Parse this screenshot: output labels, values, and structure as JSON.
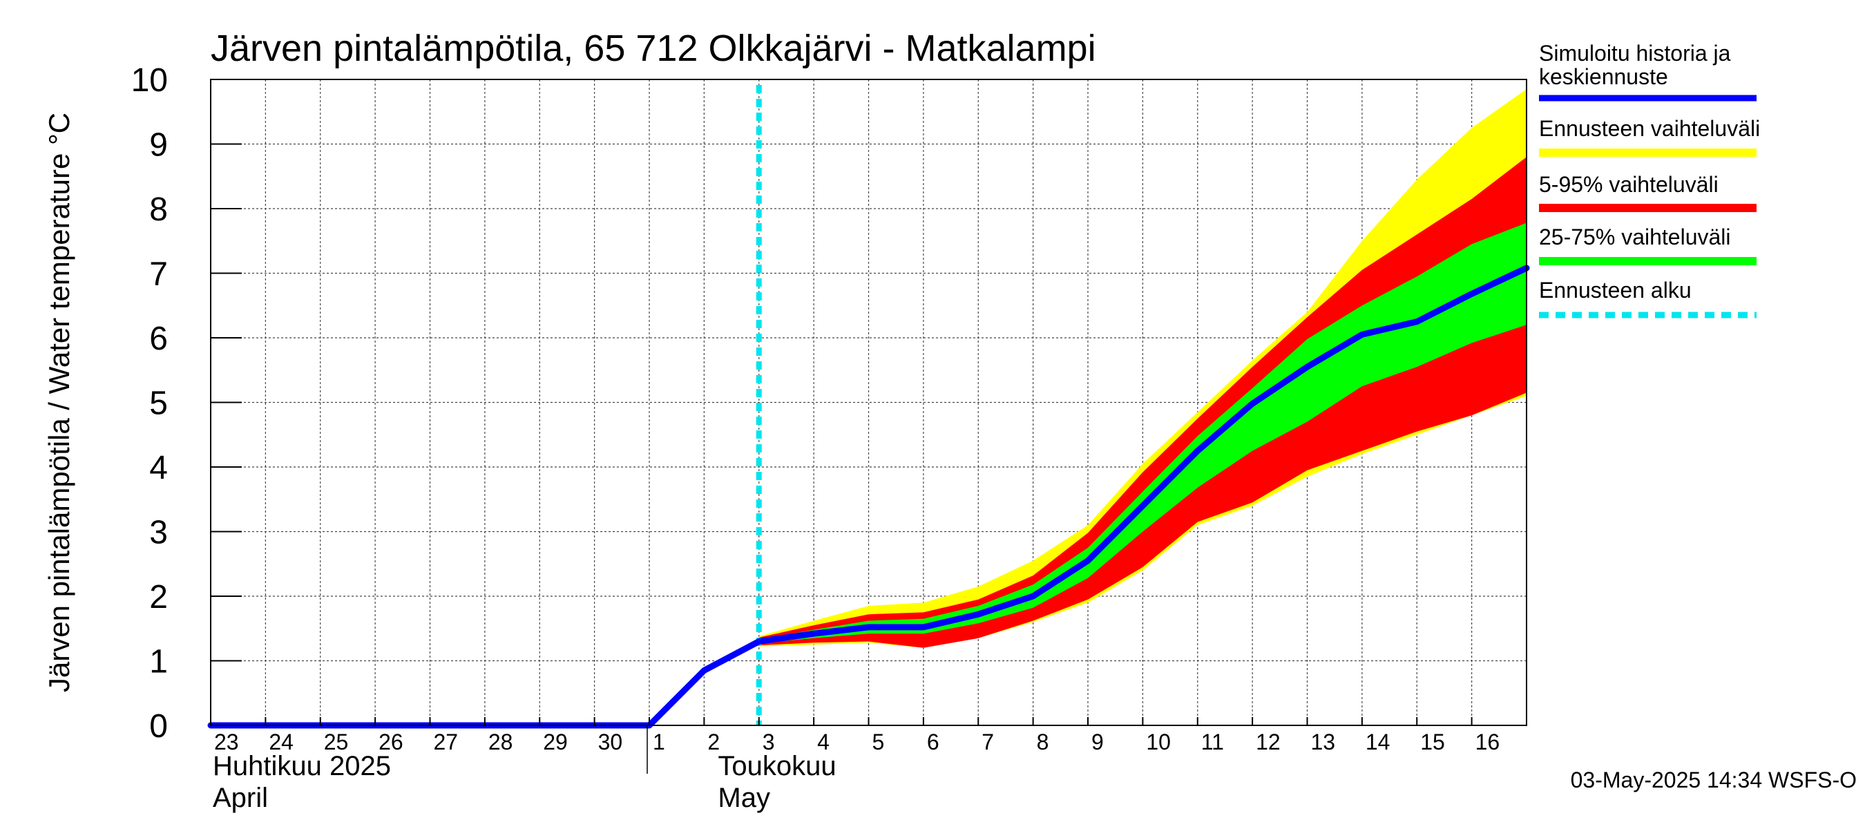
{
  "chart_data": {
    "type": "area",
    "title": "Järven pintalämpötila, 65 712 Olkkajärvi - Matkalampi",
    "ylabel": "Järven pintalämpötila / Water temperature °C",
    "ylim": [
      0,
      10
    ],
    "yticks": [
      "0",
      "1",
      "2",
      "3",
      "4",
      "5",
      "6",
      "7",
      "8",
      "9",
      "10"
    ],
    "xlim": [
      "2025-04-23",
      "2025-05-17"
    ],
    "xtick_labels": [
      "23",
      "24",
      "25",
      "26",
      "27",
      "28",
      "29",
      "30",
      "1",
      "2",
      "3",
      "4",
      "5",
      "6",
      "7",
      "8",
      "9",
      "10",
      "11",
      "12",
      "13",
      "14",
      "15",
      "16"
    ],
    "month_labels": [
      {
        "line1": "Huhtikuu  2025",
        "line2": "April"
      },
      {
        "line1": "Toukokuu",
        "line2": "May"
      }
    ],
    "grid": true,
    "legend_position": "right",
    "forecast_start": "2025-05-03",
    "x": [
      "2025-04-23",
      "2025-04-24",
      "2025-04-25",
      "2025-04-26",
      "2025-04-27",
      "2025-04-28",
      "2025-04-29",
      "2025-04-30",
      "2025-05-01",
      "2025-05-02",
      "2025-05-03",
      "2025-05-04",
      "2025-05-05",
      "2025-05-06",
      "2025-05-07",
      "2025-05-08",
      "2025-05-09",
      "2025-05-10",
      "2025-05-11",
      "2025-05-12",
      "2025-05-13",
      "2025-05-14",
      "2025-05-15",
      "2025-05-16",
      "2025-05-17"
    ],
    "series": [
      {
        "name": "Simuloitu historia ja keskiennuste",
        "color": "#0000ff",
        "values": [
          0,
          0,
          0,
          0,
          0,
          0,
          0,
          0,
          0,
          0.85,
          1.3,
          1.42,
          1.52,
          1.52,
          1.72,
          2.0,
          2.55,
          3.4,
          4.25,
          4.98,
          5.55,
          6.05,
          6.25,
          6.68,
          7.08
        ]
      },
      {
        "name": "Ennusteen vaihteluväli",
        "color": "#ffff00",
        "upper": [
          null,
          null,
          null,
          null,
          null,
          null,
          null,
          null,
          null,
          null,
          1.38,
          1.62,
          1.85,
          1.9,
          2.15,
          2.55,
          3.1,
          4.05,
          4.85,
          5.65,
          6.4,
          7.5,
          8.45,
          9.25,
          9.85
        ],
        "lower": [
          null,
          null,
          null,
          null,
          null,
          null,
          null,
          null,
          null,
          null,
          1.22,
          1.25,
          1.28,
          1.2,
          1.35,
          1.6,
          1.9,
          2.4,
          3.1,
          3.4,
          3.85,
          4.2,
          4.5,
          4.8,
          5.1
        ]
      },
      {
        "name": "5-95% vaihteluväli",
        "color": "#ff0000",
        "upper": [
          null,
          null,
          null,
          null,
          null,
          null,
          null,
          null,
          null,
          null,
          1.36,
          1.55,
          1.72,
          1.75,
          1.95,
          2.32,
          2.98,
          3.92,
          4.75,
          5.55,
          6.32,
          7.05,
          7.6,
          8.15,
          8.8
        ],
        "lower": [
          null,
          null,
          null,
          null,
          null,
          null,
          null,
          null,
          null,
          null,
          1.24,
          1.28,
          1.3,
          1.2,
          1.35,
          1.62,
          1.95,
          2.45,
          3.15,
          3.45,
          3.95,
          4.25,
          4.55,
          4.8,
          5.15
        ]
      },
      {
        "name": "25-75% vaihteluväli",
        "color": "#00ff00",
        "upper": [
          null,
          null,
          null,
          null,
          null,
          null,
          null,
          null,
          null,
          null,
          1.33,
          1.48,
          1.62,
          1.65,
          1.85,
          2.18,
          2.75,
          3.62,
          4.48,
          5.22,
          5.98,
          6.5,
          6.95,
          7.45,
          7.78
        ],
        "lower": [
          null,
          null,
          null,
          null,
          null,
          null,
          null,
          null,
          null,
          null,
          1.27,
          1.35,
          1.42,
          1.42,
          1.58,
          1.82,
          2.28,
          3.0,
          3.68,
          4.25,
          4.7,
          5.25,
          5.55,
          5.92,
          6.2
        ]
      },
      {
        "name": "Ennusteen alku",
        "color": "#00e5ee",
        "style": "dashed"
      }
    ]
  },
  "timestamp": "03-May-2025 14:34 WSFS-O"
}
